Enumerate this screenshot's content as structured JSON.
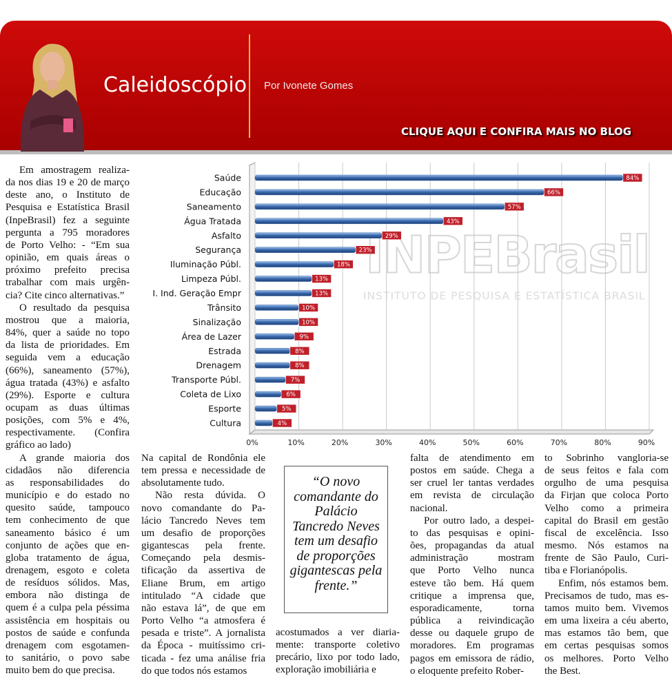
{
  "header": {
    "title": "Caleidoscópio",
    "byline": "Por Ivonete Gomes",
    "link": "CLIQUE AQUI E CONFIRA MAIS NO BLOG"
  },
  "chart_data": {
    "type": "bar",
    "orientation": "horizontal",
    "categories": [
      "Saúde",
      "Educação",
      "Saneamento",
      "Água Tratada",
      "Asfalto",
      "Segurança",
      "Iluminação Públ.",
      "Limpeza Públ.",
      "I. Ind. Geração Empr",
      "Trânsito",
      "Sinalização",
      "Área de Lazer",
      "Estrada",
      "Drenagem",
      "Transporte Públ.",
      "Coleta de Lixo",
      "Esporte",
      "Cultura"
    ],
    "values": [
      84,
      66,
      57,
      43,
      29,
      23,
      18,
      13,
      13,
      10,
      10,
      9,
      8,
      8,
      7,
      6,
      5,
      4
    ],
    "value_labels": [
      "84%",
      "66%",
      "57%",
      "43%",
      "29%",
      "23%",
      "18%",
      "13%",
      "13%",
      "10%",
      "10%",
      "9%",
      "8%",
      "8%",
      "7%",
      "6%",
      "5%",
      "4%"
    ],
    "color": "#3d6cb0",
    "label_color": "#c0202a",
    "xlim": [
      0,
      90
    ],
    "xticks": [
      {
        "value": 0,
        "label": "0%"
      },
      {
        "value": 10,
        "label": "10%"
      },
      {
        "value": 20,
        "label": "20%"
      },
      {
        "value": 30,
        "label": "30%"
      },
      {
        "value": 40,
        "label": "40%"
      },
      {
        "value": 50,
        "label": "50%"
      },
      {
        "value": 60,
        "label": "60%"
      },
      {
        "value": 70,
        "label": "70%"
      },
      {
        "value": 80,
        "label": "80%"
      },
      {
        "value": 90,
        "label": "90%"
      }
    ],
    "grid": true,
    "watermark": {
      "logo": "INPEBrasil",
      "tagline": "INSTITUTO DE PESQUISA E ESTATÍSTICA BRASIL"
    }
  },
  "columns": [
    [
      [
        "Em amostragem realiza-",
        "da nos dias 19 e 20 de março",
        "deste ano, o Instituto de",
        "Pesquisa e Estatística Brasil",
        "(InpeBrasil) fez a seguinte",
        "pergunta a 795 moradores",
        "de Porto Velho: - “Em sua",
        "opinião, em quais áreas o",
        "próximo prefeito precisa",
        "trabalhar com mais urgên-",
        "cia? Cite cinco alternativas.”"
      ],
      [
        "O resultado da pesquisa",
        "mostrou que a maioria,",
        "84%, quer a saúde no topo",
        "da lista de prioridades. Em",
        "seguida vem a educação",
        "(66%), saneamento (57%),",
        "água tratada (43%) e asfalto",
        "(29%). Esporte e cultura",
        "ocupam as duas últimas",
        "posições, com 5% e 4%,",
        "respectivamente. (Confira",
        "gráfico ao lado)"
      ],
      [
        "A grande maioria dos",
        "cidadãos não diferencia",
        "as responsabilidades do",
        "município e do estado no",
        "quesito saúde, tampouco",
        "tem conhecimento de que",
        "saneamento básico é um",
        "conjunto de ações que en-",
        "globa tratamento de água,",
        "drenagem, esgoto e coleta",
        "de resíduos sólidos. Mas,",
        "embora não distinga de",
        "quem é a culpa pela péssima",
        "assistência em hospitais ou",
        "postos de saúde e confunda",
        "drenagem com esgotamen-",
        "to sanitário, o povo sabe",
        "muito bem do que precisa."
      ]
    ],
    [
      [
        "Na capital de Rondônia ele",
        "tem pressa e necessidade de",
        "absolutamente tudo."
      ],
      [
        "Não resta dúvida. O",
        "novo comandante do Pa-",
        "lácio Tancredo Neves tem",
        "um desafio de proporções",
        "gigantescas pela frente.",
        "Começando pela desmis-",
        "tificação da assertiva de",
        "Eliane Brum, em artigo",
        "intitulado “A cidade que",
        "não estava lá”, de que em",
        "Porto Velho “a atmosfera é",
        "pesada e triste”. A jornalista",
        "da Época - muitíssimo cri-",
        "ticada - fez uma análise fria",
        "do que todos nós estamos"
      ]
    ],
    [
      [
        "acostumados a ver diaria-",
        "mente: transporte coletivo",
        "precário, lixo por todo lado,",
        "exploração imobiliária e"
      ]
    ],
    [
      [
        "falta de atendimento em",
        "postos em saúde. Chega a",
        "ser cruel ler tantas verdades",
        "em revista de circulação",
        "nacional."
      ],
      [
        "Por outro lado, a despei-",
        "to das pesquisas e opini-",
        "ões, propagandas da atual",
        "administração mostram",
        "que Porto Velho nunca",
        "esteve tão bem. Há quem",
        "critique a imprensa que,",
        "esporadicamente, torna",
        "pública a reivindicação",
        "desse ou daquele grupo de",
        "moradores. Em programas",
        "pagos em emissora de rádio,",
        "o eloquente prefeito Rober-"
      ]
    ],
    [
      [
        "to Sobrinho vangloria-se",
        "de seus feitos e fala com",
        "orgulho de uma pesquisa",
        "da Firjan que coloca Porto",
        "Velho como a primeira",
        "capital do Brasil em gestão",
        "fiscal de excelência. Isso",
        "mesmo. Nós estamos na",
        "frente de São Paulo, Curi-",
        "tiba e Florianópolis."
      ],
      [
        "Enfim, nós estamos bem.",
        "Precisamos de tudo, mas es-",
        "tamos muito bem. Vivemos",
        "em uma lixeira a céu aberto,",
        "mas estamos tão bem, que",
        "em certas pesquisas somos",
        "os melhores. Porto Velho",
        "the Best."
      ]
    ]
  ],
  "pull_quote": "“O novo comandante do Palácio Tancredo Neves tem um desafio de proporções gigantescas pela frente.”"
}
